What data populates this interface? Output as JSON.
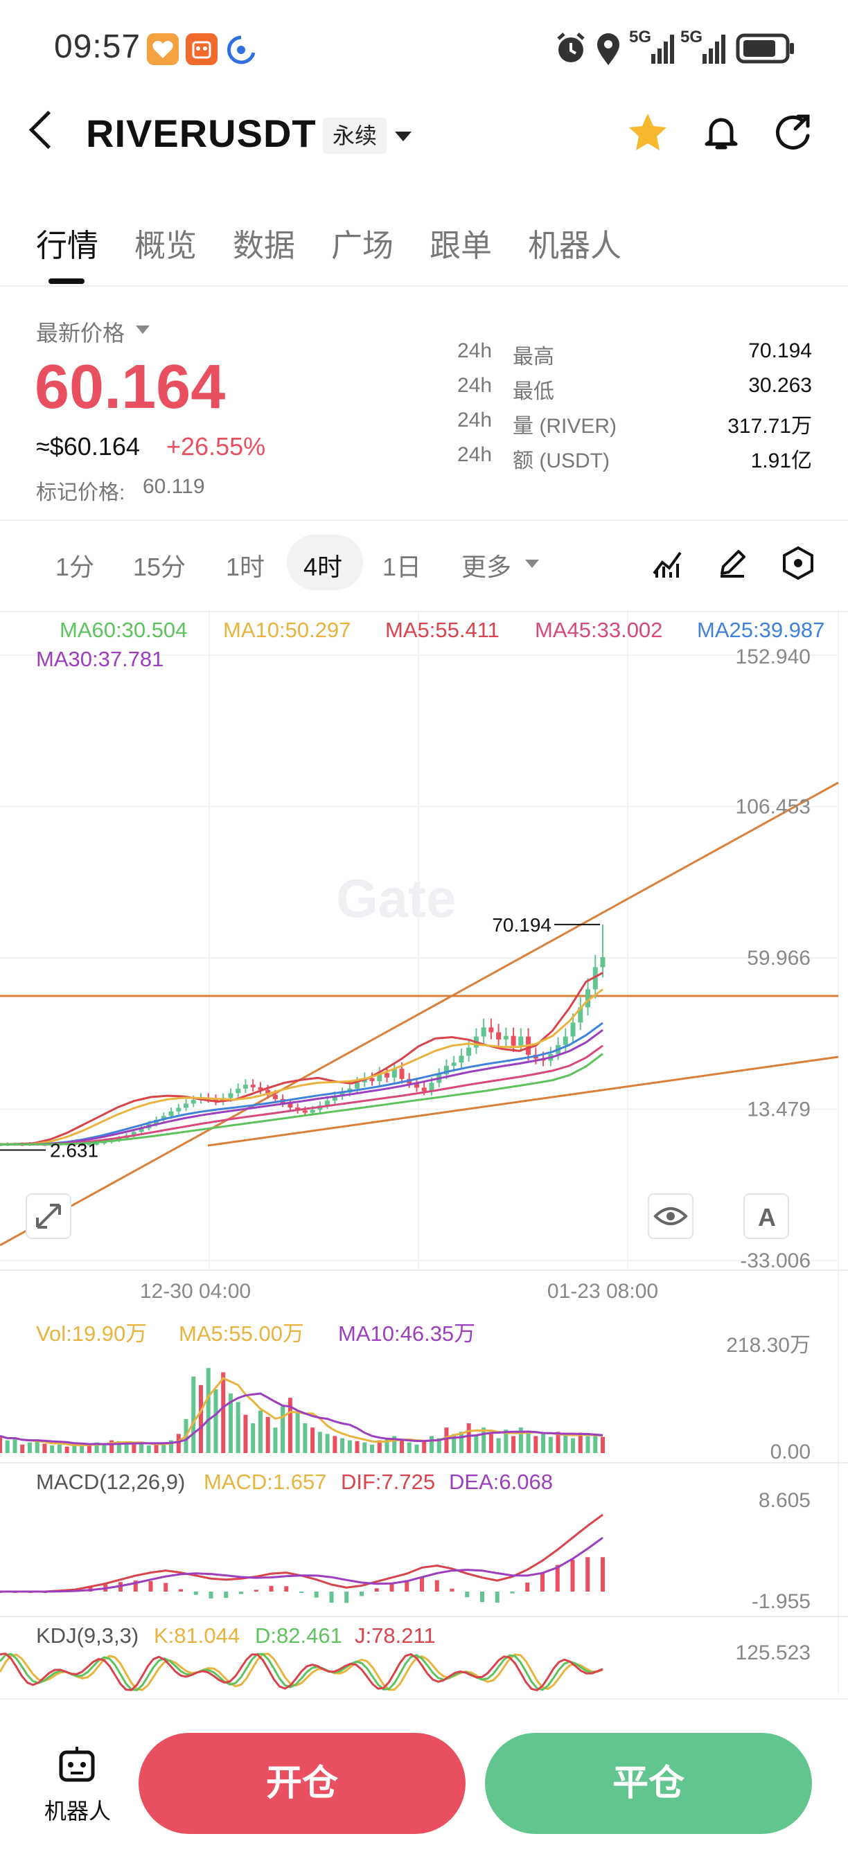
{
  "status_bar": {
    "time": "09:57",
    "network_1": "5G",
    "network_2": "5G"
  },
  "header": {
    "title": "RIVERUSDT",
    "contract_type": "永续"
  },
  "tabs": [
    {
      "label": "行情",
      "active": true
    },
    {
      "label": "概览"
    },
    {
      "label": "数据"
    },
    {
      "label": "广场"
    },
    {
      "label": "跟单"
    },
    {
      "label": "机器人"
    }
  ],
  "price": {
    "latest_label": "最新价格",
    "last": "60.164",
    "usd": "≈$60.164",
    "change": "+26.55%",
    "mark_label": "标记价格:",
    "mark_value": "60.119"
  },
  "stats": [
    {
      "period": "24h",
      "label": "最高",
      "value": "70.194"
    },
    {
      "period": "24h",
      "label": "最低",
      "value": "30.263"
    },
    {
      "period": "24h",
      "label": "量 (RIVER)",
      "value": "317.71万"
    },
    {
      "period": "24h",
      "label": "额 (USDT)",
      "value": "1.91亿"
    }
  ],
  "intervals": [
    "1分",
    "15分",
    "1时",
    "4时",
    "1日",
    "更多"
  ],
  "active_interval": "4时",
  "chart_data": {
    "type": "candlestick",
    "ma_legend": [
      {
        "label": "MA60:30.504",
        "color": "#5ec35e"
      },
      {
        "label": "MA10:50.297",
        "color": "#e8b33e"
      },
      {
        "label": "MA5:55.411",
        "color": "#d9434c"
      },
      {
        "label": "MA45:33.002",
        "color": "#d8487d"
      },
      {
        "label": "MA25:39.987",
        "color": "#3f82db"
      },
      {
        "label": "MA30:37.781",
        "color": "#9c3fbf"
      }
    ],
    "y_ticks": [
      "152.940",
      "106.453",
      "59.966",
      "13.479",
      "-33.006"
    ],
    "y_tick_values": [
      152.94,
      106.453,
      59.966,
      13.479,
      -33.006
    ],
    "x_ticks": [
      "12-30 04:00",
      "01-23 08:00"
    ],
    "high_marker": "70.194",
    "low_marker": "2.631",
    "watermark": "Gate",
    "price_series": [
      2.6,
      2.7,
      2.7,
      2.6,
      2.8,
      2.7,
      2.6,
      2.7,
      2.8,
      2.9,
      2.7,
      2.6,
      2.8,
      3.0,
      3.4,
      3.9,
      4.6,
      5.4,
      6.5,
      7.6,
      8.9,
      10.2,
      11.4,
      12.8,
      13.9,
      15.2,
      16.3,
      17.0,
      16.6,
      15.8,
      16.9,
      18.4,
      19.8,
      21.0,
      20.2,
      19.4,
      17.9,
      16.6,
      15.2,
      14.0,
      13.1,
      12.4,
      13.3,
      14.6,
      16.1,
      17.5,
      18.6,
      19.8,
      21.7,
      23.0,
      22.1,
      24.6,
      23.2,
      25.9,
      22.8,
      21.4,
      20.1,
      19.0,
      21.6,
      24.2,
      26.8,
      27.8,
      29.9,
      32.4,
      35.8,
      38.6,
      37.1,
      34.9,
      36.0,
      33.0,
      35.8,
      30.2,
      29.0,
      28.4,
      30.4,
      33.2,
      35.8,
      40.1,
      44.8,
      50.3,
      57.1,
      60.2
    ],
    "ma_series": [
      {
        "name": "MA5",
        "color": "#d9434c",
        "values": [
          2.7,
          2.8,
          3.0,
          4.2,
          6.2,
          8.8,
          11.4,
          14.0,
          16.0,
          17.2,
          17.6,
          17.4,
          16.5,
          15.8,
          16.4,
          18.1,
          20.0,
          21.6,
          22.5,
          23.1,
          22.0,
          21.4,
          23.0,
          25.8,
          29.0,
          32.8,
          35.2,
          35.6,
          34.8,
          33.2,
          32.0,
          31.4,
          33.0,
          37.6,
          44.5,
          52.6,
          55.4
        ]
      },
      {
        "name": "MA10",
        "color": "#e8b33e",
        "values": [
          2.7,
          2.7,
          2.8,
          3.5,
          5.0,
          7.0,
          9.4,
          11.8,
          13.8,
          15.4,
          16.5,
          17.0,
          16.9,
          16.6,
          16.4,
          17.0,
          18.2,
          19.6,
          20.8,
          21.6,
          21.8,
          22.1,
          23.1,
          24.8,
          26.8,
          29.1,
          31.4,
          33.0,
          33.6,
          33.1,
          32.6,
          32.6,
          33.5,
          36.0,
          40.5,
          46.4,
          50.3
        ]
      },
      {
        "name": "MA25",
        "color": "#3f82db",
        "values": [
          2.7,
          2.7,
          2.7,
          2.9,
          3.4,
          4.2,
          5.3,
          6.6,
          8.0,
          9.4,
          10.7,
          11.8,
          12.7,
          13.4,
          14.0,
          14.6,
          15.3,
          16.1,
          16.9,
          17.7,
          18.4,
          19.1,
          19.9,
          20.8,
          21.8,
          22.9,
          24.1,
          25.3,
          26.4,
          27.3,
          28.1,
          28.9,
          29.8,
          31.1,
          33.2,
          36.2,
          40.0
        ]
      },
      {
        "name": "MA30",
        "color": "#9c3fbf",
        "values": [
          2.7,
          2.7,
          2.7,
          2.8,
          3.2,
          3.9,
          4.8,
          5.9,
          7.1,
          8.4,
          9.6,
          10.7,
          11.6,
          12.4,
          13.1,
          13.8,
          14.5,
          15.2,
          15.9,
          16.7,
          17.4,
          18.1,
          18.9,
          19.7,
          20.6,
          21.6,
          22.7,
          23.8,
          24.9,
          25.8,
          26.7,
          27.5,
          28.4,
          29.5,
          31.3,
          34.0,
          37.8
        ]
      },
      {
        "name": "MA45",
        "color": "#d8487d",
        "values": [
          2.7,
          2.7,
          2.7,
          2.7,
          2.9,
          3.3,
          3.9,
          4.6,
          5.4,
          6.3,
          7.2,
          8.1,
          9.0,
          9.8,
          10.6,
          11.3,
          12.0,
          12.7,
          13.4,
          14.1,
          14.8,
          15.5,
          16.2,
          16.9,
          17.6,
          18.4,
          19.2,
          20.1,
          21.0,
          21.8,
          22.6,
          23.4,
          24.3,
          25.3,
          26.8,
          29.3,
          33.0
        ]
      },
      {
        "name": "MA60",
        "color": "#5ec35e",
        "values": [
          2.7,
          2.7,
          2.7,
          2.7,
          2.8,
          3.0,
          3.4,
          3.9,
          4.5,
          5.1,
          5.8,
          6.5,
          7.2,
          7.9,
          8.6,
          9.3,
          10.0,
          10.7,
          11.4,
          12.1,
          12.8,
          13.5,
          14.2,
          14.9,
          15.6,
          16.3,
          17.0,
          17.7,
          18.4,
          19.1,
          19.9,
          20.7,
          21.5,
          22.4,
          23.9,
          26.6,
          30.5
        ]
      }
    ],
    "volume_panel": {
      "legend": [
        {
          "label": "Vol:19.90万",
          "color": "#e8b33e"
        },
        {
          "label": "MA5:55.00万",
          "color": "#e8b33e"
        },
        {
          "label": "MA10:46.35万",
          "color": "#9c3fbf"
        }
      ],
      "y_ticks": [
        "218.30万",
        "0.00"
      ],
      "values": [
        40,
        30,
        35,
        20,
        25,
        30,
        22,
        18,
        20,
        15,
        18,
        20,
        22,
        25,
        20,
        30,
        28,
        25,
        20,
        22,
        18,
        20,
        25,
        30,
        45,
        80,
        180,
        160,
        200,
        150,
        190,
        140,
        120,
        90,
        70,
        100,
        85,
        60,
        110,
        130,
        95,
        70,
        60,
        50,
        45,
        40,
        35,
        30,
        28,
        25,
        20,
        30,
        35,
        40,
        30,
        25,
        20,
        30,
        40,
        35,
        60,
        45,
        50,
        70,
        40,
        60,
        45,
        35,
        55,
        40,
        60,
        50,
        40,
        45,
        38,
        50,
        42,
        35,
        48,
        40,
        45,
        38
      ]
    },
    "macd_panel": {
      "legend": [
        {
          "label": "MACD(12,26,9)",
          "color": "#555555"
        },
        {
          "label": "MACD:1.657",
          "color": "#e8b33e"
        },
        {
          "label": "DIF:7.725",
          "color": "#d9434c"
        },
        {
          "label": "DEA:6.068",
          "color": "#9c3fbf"
        }
      ],
      "y_ticks": [
        "8.605",
        "-1.955"
      ]
    },
    "kdj_panel": {
      "legend": [
        {
          "label": "KDJ(9,3,3)",
          "color": "#555555"
        },
        {
          "label": "K:81.044",
          "color": "#e8b33e"
        },
        {
          "label": "D:82.461",
          "color": "#5ec35e"
        },
        {
          "label": "J:78.211",
          "color": "#d9434c"
        }
      ],
      "y_ticks": [
        "125.523"
      ]
    }
  },
  "bottom_bar": {
    "robot_label": "机器人",
    "open_label": "开仓",
    "close_label": "平仓"
  },
  "colors": {
    "down_red": "#e8505f",
    "up_green": "#62c48f",
    "trend_line": "#d9803a"
  }
}
